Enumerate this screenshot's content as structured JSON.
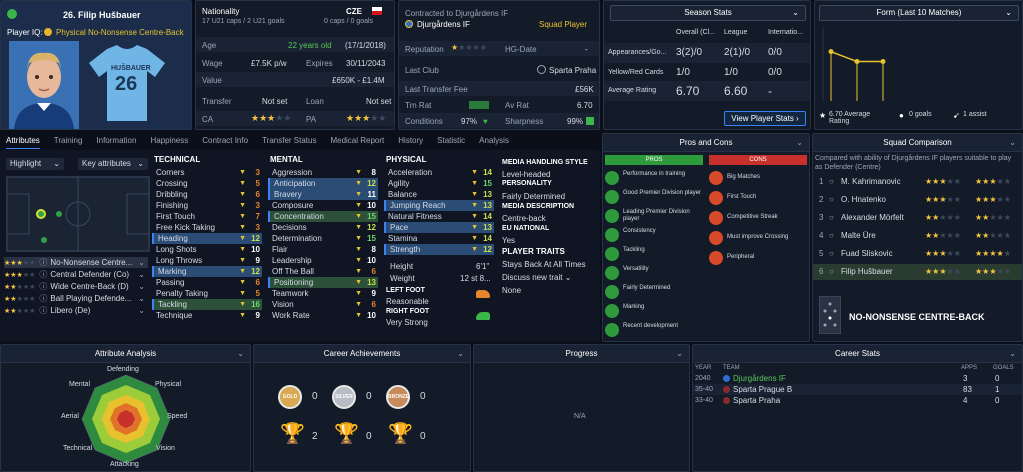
{
  "player": {
    "name": "26. Filip Hušbauer",
    "role_label": "Player IQ:",
    "role": "Physical No-Nonsense Centre-Back",
    "shirt_name": "HUŠBAUER",
    "shirt_number": "26"
  },
  "info": {
    "nationality_label": "Nationality",
    "nationality": "CZE",
    "caps": "17 U21 caps / 2 U21 goals",
    "caps2": "0 caps / 0 goals",
    "age_label": "Age",
    "age": "22 years old",
    "dob": "(17/1/2018)",
    "wage_label": "Wage",
    "wage": "£7.5K p/w",
    "expires_label": "Expires",
    "expires": "30/11/2043",
    "value_label": "Value",
    "value": "£650K - £1.4M",
    "transfer_label": "Transfer",
    "transfer": "Not set",
    "loan_label": "Loan",
    "loan": "Not set",
    "ca_label": "CA",
    "pa_label": "PA"
  },
  "contract": {
    "label": "Contracted to Djurgårdens IF",
    "club": "Djurgårdens IF",
    "status": "Squad Player",
    "reputation_label": "Reputation",
    "hg_label": "HG-Date",
    "hg_value": "-",
    "last_club_label": "Last Club",
    "last_club": "Sparta Praha",
    "last_fee_label": "Last Transfer Fee",
    "last_fee": "£56K",
    "trn_label": "Trn Rat",
    "av_label": "Av Rat",
    "av_value": "6.70",
    "conditions_label": "Conditions",
    "conditions": "97%",
    "sharpness_label": "Sharpness",
    "sharpness": "99%"
  },
  "season": {
    "title": "Season Stats",
    "cols": [
      "Overall (Cl...",
      "League",
      "Internatio..."
    ],
    "rows": [
      {
        "label": "Appearances/Go...",
        "v": [
          "3(2)/0",
          "2(1)/0",
          "0/0"
        ]
      },
      {
        "label": "Yellow/Red Cards",
        "v": [
          "1/0",
          "1/0",
          "0/0"
        ]
      },
      {
        "label": "Average Rating",
        "v": [
          "6.70",
          "6.60",
          "-"
        ]
      }
    ],
    "button": "View Player Stats"
  },
  "form": {
    "title": "Form (Last 10 Matches)",
    "avg": "6.70 Average Rating",
    "goals": "0 goals",
    "assists": "1 assist",
    "values": [
      7.0,
      6.6,
      6.6
    ]
  },
  "tabs": [
    "Attributes",
    "Training",
    "Information",
    "Happiness",
    "Contract Info",
    "Transfer Status",
    "Medical Report",
    "History",
    "Statistic",
    "Analysis"
  ],
  "filters": {
    "highlight": "Highlight",
    "key": "Key attributes"
  },
  "roles": [
    {
      "name": "No-Nonsense Centre..."
    },
    {
      "name": "Central Defender (Co)"
    },
    {
      "name": "Wide Centre-Back (D)"
    },
    {
      "name": "Ball Playing Defende..."
    },
    {
      "name": "Libero (De)"
    }
  ],
  "technical": {
    "title": "TECHNICAL",
    "items": [
      [
        "Corners",
        "3"
      ],
      [
        "Crossing",
        "5"
      ],
      [
        "Dribbling",
        "6"
      ],
      [
        "Finishing",
        "3"
      ],
      [
        "First Touch",
        "7"
      ],
      [
        "Free Kick Taking",
        "3"
      ],
      [
        "Heading",
        "12"
      ],
      [
        "Long Shots",
        "10"
      ],
      [
        "Long Throws",
        "9"
      ],
      [
        "Marking",
        "12"
      ],
      [
        "Passing",
        "6"
      ],
      [
        "Penalty Taking",
        "5"
      ],
      [
        "Tackling",
        "16"
      ],
      [
        "Technique",
        "9"
      ]
    ]
  },
  "mental": {
    "title": "MENTAL",
    "items": [
      [
        "Aggression",
        "8"
      ],
      [
        "Anticipation",
        "12"
      ],
      [
        "Bravery",
        "11"
      ],
      [
        "Composure",
        "10"
      ],
      [
        "Concentration",
        "15"
      ],
      [
        "Decisions",
        "12"
      ],
      [
        "Determination",
        "15"
      ],
      [
        "Flair",
        "8"
      ],
      [
        "Leadership",
        "10"
      ],
      [
        "Off The Ball",
        "6"
      ],
      [
        "Positioning",
        "13"
      ],
      [
        "Teamwork",
        "9"
      ],
      [
        "Vision",
        "6"
      ],
      [
        "Work Rate",
        "10"
      ]
    ]
  },
  "physical": {
    "title": "PHYSICAL",
    "items": [
      [
        "Acceleration",
        "14"
      ],
      [
        "Agility",
        "15"
      ],
      [
        "Balance",
        "13"
      ],
      [
        "Jumping Reach",
        "13"
      ],
      [
        "Natural Fitness",
        "14"
      ],
      [
        "Pace",
        "13"
      ],
      [
        "Stamina",
        "14"
      ],
      [
        "Strength",
        "12"
      ]
    ]
  },
  "body": {
    "height_label": "Height",
    "height": "6'1\"",
    "weight_label": "Weight",
    "weight": "12 st 8...",
    "left_foot_label": "LEFT FOOT",
    "left_foot": "Reasonable",
    "right_foot_label": "RIGHT FOOT",
    "right_foot": "Very Strong"
  },
  "media": {
    "style_label": "MEDIA HANDLING STYLE",
    "style": "Level-headed",
    "personality_label": "PERSONALITY",
    "personality": "Fairly Determined",
    "desc_label": "MEDIA DESCRIPTION",
    "desc": "Centre-back",
    "eu_label": "EU NATIONAL",
    "eu": "Yes",
    "traits_label": "PLAYER TRAITS",
    "traits": [
      "Stays Back At All Times"
    ],
    "discuss": "Discuss new trait",
    "none": "None"
  },
  "proscons": {
    "title": "Pros and Cons",
    "pros_label": "PROS",
    "cons_label": "CONS",
    "pros": [
      "Performance in training",
      "Good Premier Division player",
      "Leading Premier Division player",
      "Consistency",
      "Tackling",
      "Versatility",
      "Fairly Determined",
      "Marking",
      "Recent development"
    ],
    "cons": [
      "Big Matches",
      "First Touch",
      "Competitive Streak",
      "Must improve Crossing",
      "Peripheral"
    ]
  },
  "squad": {
    "title": "Squad Comparison",
    "desc": "Compared with ability of Djurgårdens IF players suitable to play as Defender (Centre)",
    "rows": [
      {
        "n": "1",
        "name": "M. Kahrimanovic"
      },
      {
        "n": "2",
        "name": "O. Hnatenko"
      },
      {
        "n": "3",
        "name": "Alexander Mörfelt"
      },
      {
        "n": "4",
        "name": "Malte Üre"
      },
      {
        "n": "5",
        "name": "Fuad Sliskovic"
      },
      {
        "n": "6",
        "name": "Filip Hušbauer"
      }
    ],
    "role": "NO-NONSENSE CENTRE-BACK"
  },
  "analysis": {
    "title": "Attribute Analysis",
    "labels": [
      "Defending",
      "Physical",
      "Speed",
      "Vision",
      "Attacking",
      "Technical",
      "Aerial",
      "Mental"
    ]
  },
  "achievements": {
    "title": "Career Achievements",
    "medals": [
      {
        "label": "GOLD",
        "count": "0"
      },
      {
        "label": "SILVER",
        "count": "0"
      },
      {
        "label": "BRONZE",
        "count": "0"
      }
    ],
    "trophies": [
      "2",
      "0",
      "0"
    ]
  },
  "progress": {
    "title": "Progress",
    "na": "N/A"
  },
  "career": {
    "title": "Career Stats",
    "cols": [
      "YEAR",
      "TEAM",
      "APPS",
      "GOALS"
    ],
    "rows": [
      {
        "year": "2040",
        "team": "Djurgårdens IF",
        "apps": "3",
        "goals": "0"
      },
      {
        "year": "35-40",
        "team": "Sparta Prague B",
        "apps": "83",
        "goals": "1"
      },
      {
        "year": "33-40",
        "team": "Sparta Praha",
        "apps": "4",
        "goals": "0"
      }
    ]
  }
}
